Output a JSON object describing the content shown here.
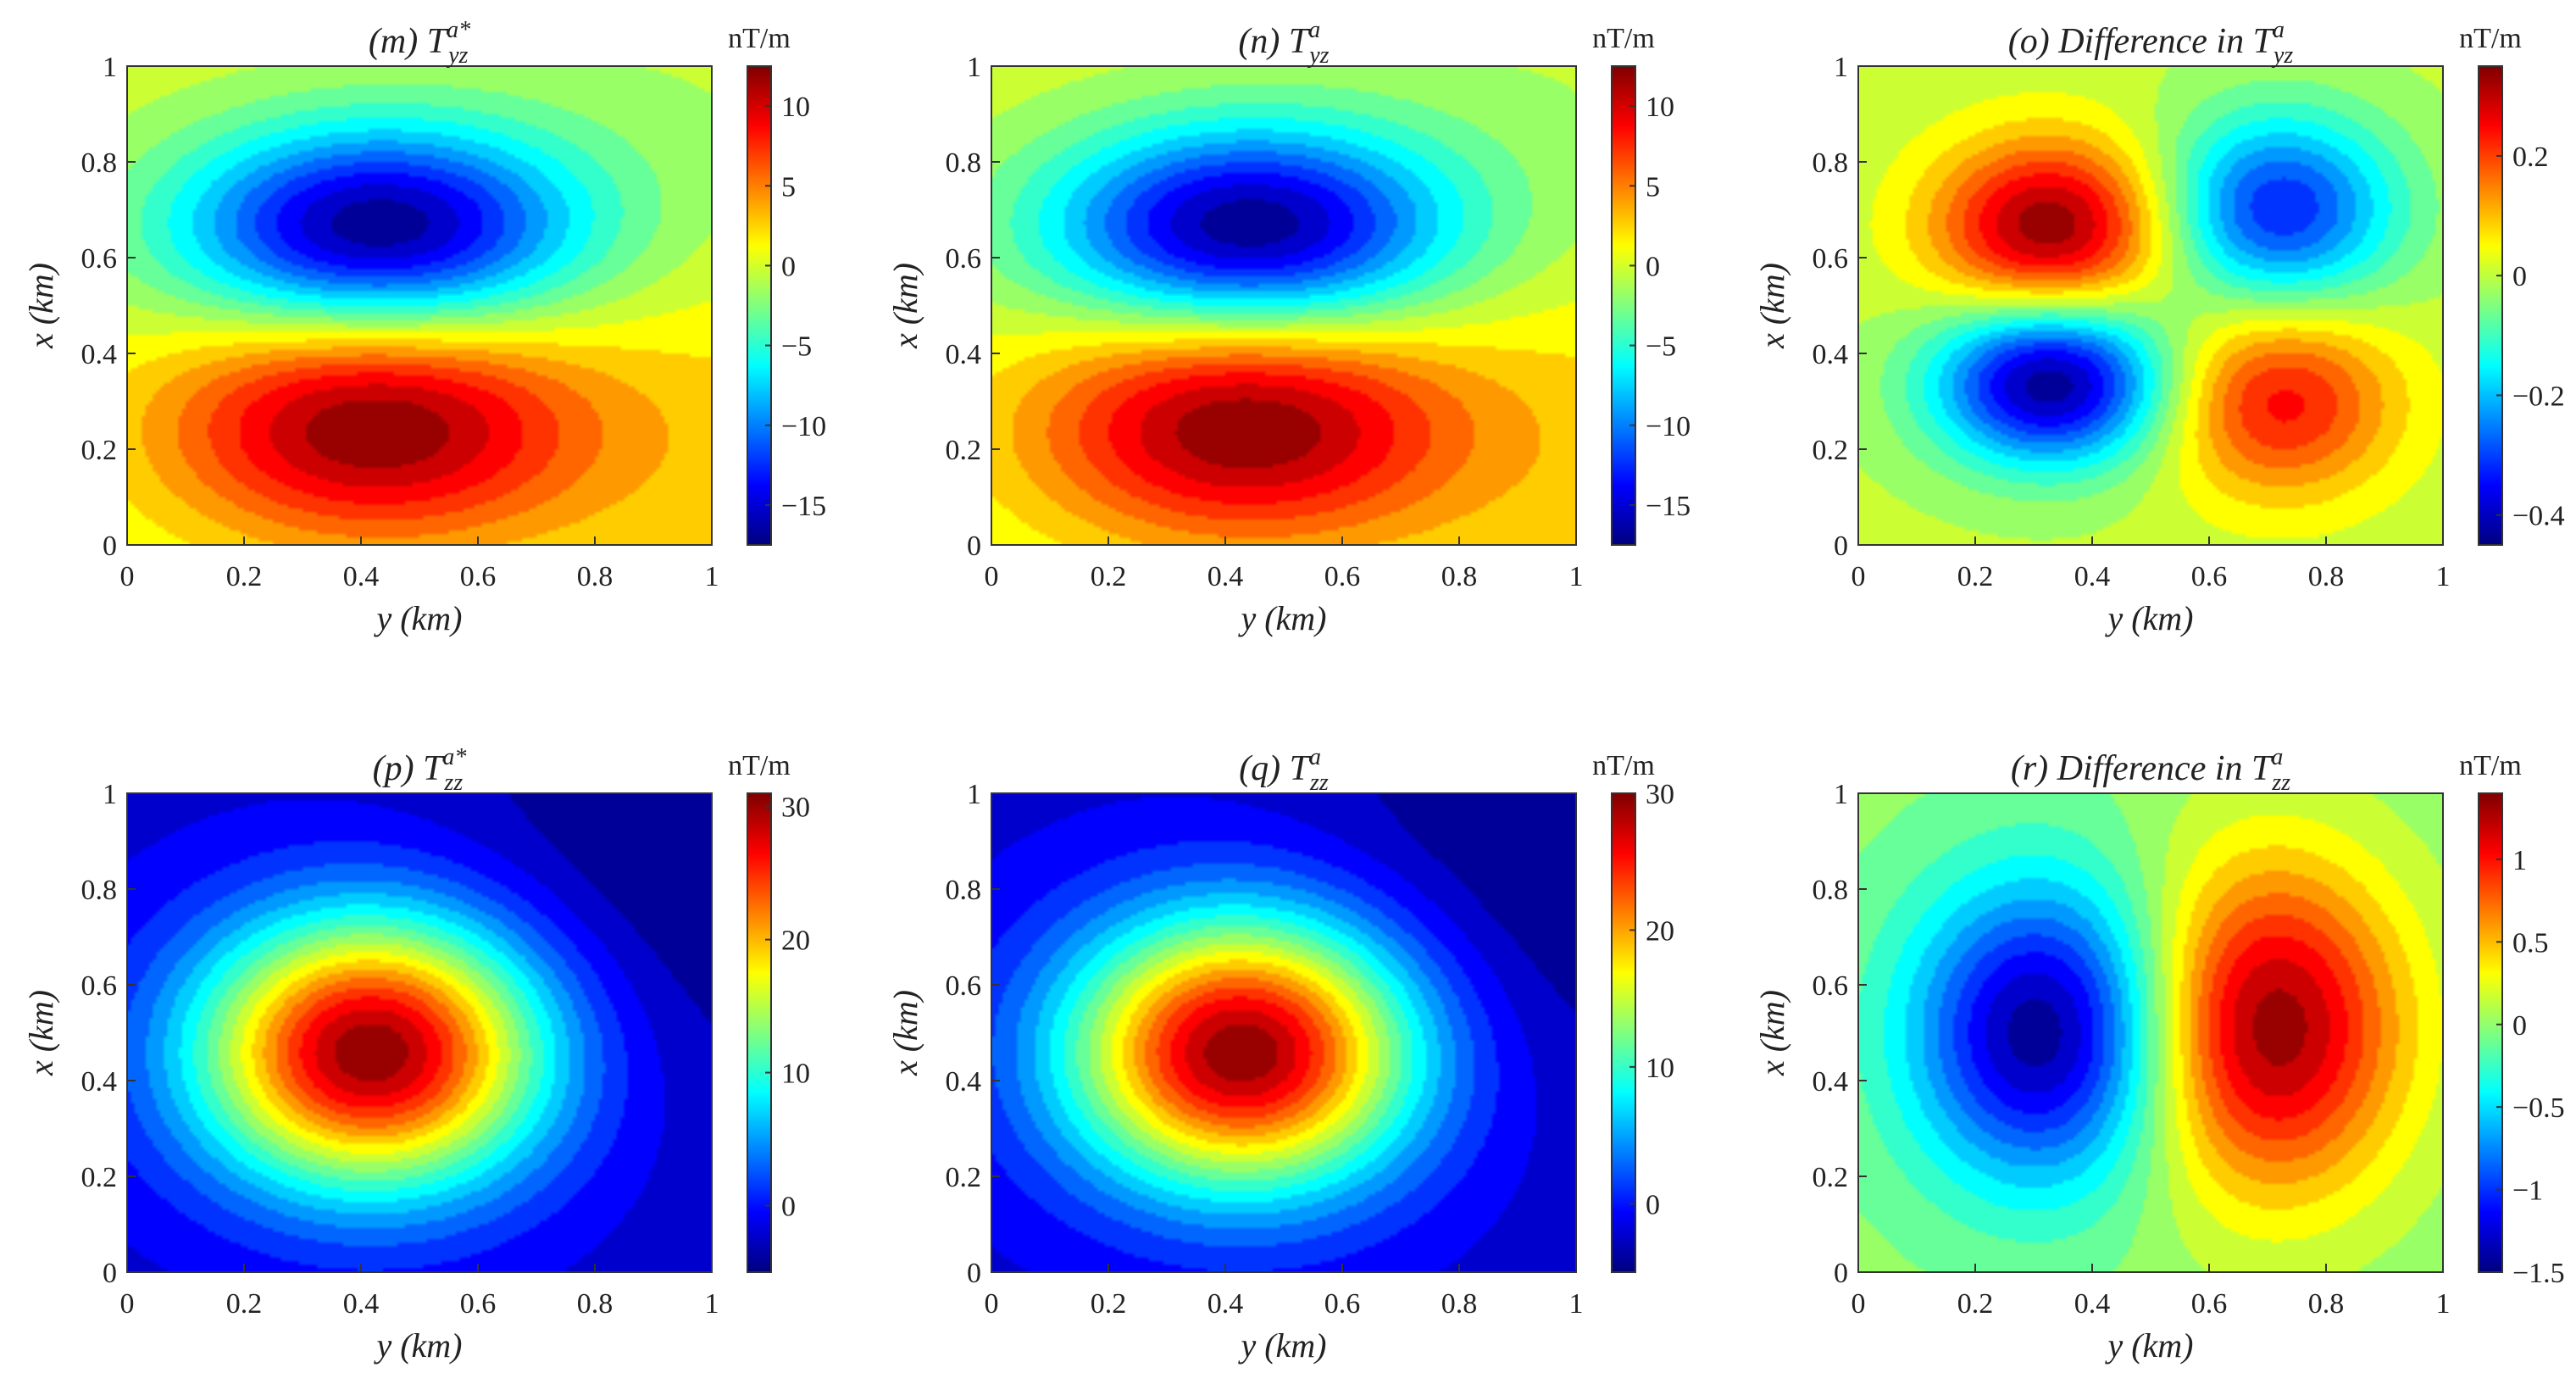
{
  "figure": {
    "colorbar_unit": "nT/m",
    "panels_note": "3x2 grid of filled contour maps"
  },
  "chart_data": [
    {
      "type": "heatmap",
      "title": {
        "label": "(m) ",
        "base": "T",
        "sup": "a*",
        "sub": "yz"
      },
      "xlabel": "y (km)",
      "ylabel": "x (km)",
      "xlim": [
        0,
        1
      ],
      "ylim": [
        0,
        1
      ],
      "xticks": [
        "0",
        "0.2",
        "0.4",
        "0.6",
        "0.8",
        "1"
      ],
      "yticks": [
        "0",
        "0.2",
        "0.4",
        "0.6",
        "0.8",
        "1"
      ],
      "colorbar": {
        "label": "nT/m",
        "min": -17.5,
        "max": 12.5,
        "ticks": [
          -15,
          -10,
          -5,
          0,
          5,
          10
        ],
        "tick_labels": [
          "−15",
          "−10",
          "−5",
          "0",
          "5",
          "10"
        ]
      },
      "levels": 20,
      "field": {
        "base": 0,
        "blobs": [
          {
            "x": 0.42,
            "y": 0.25,
            "sx": 0.25,
            "sy": 0.17,
            "a": 12.5
          },
          {
            "x": 0.43,
            "y": 0.66,
            "sx": 0.24,
            "sy": 0.15,
            "a": -17.5
          },
          {
            "x": 1.05,
            "y": 0.2,
            "sx": 0.28,
            "sy": 0.3,
            "a": 2.2
          },
          {
            "x": 0.95,
            "y": 0.85,
            "sx": 0.3,
            "sy": 0.25,
            "a": -1.0
          }
        ]
      }
    },
    {
      "type": "heatmap",
      "title": {
        "label": "(n) ",
        "base": "T",
        "sup": "a",
        "sub": "yz"
      },
      "xlabel": "y (km)",
      "ylabel": "x (km)",
      "xlim": [
        0,
        1
      ],
      "ylim": [
        0,
        1
      ],
      "xticks": [
        "0",
        "0.2",
        "0.4",
        "0.6",
        "0.8",
        "1"
      ],
      "yticks": [
        "0",
        "0.2",
        "0.4",
        "0.6",
        "0.8",
        "1"
      ],
      "colorbar": {
        "label": "nT/m",
        "min": -17.5,
        "max": 12.5,
        "ticks": [
          -15,
          -10,
          -5,
          0,
          5,
          10
        ],
        "tick_labels": [
          "−15",
          "−10",
          "−5",
          "0",
          "5",
          "10"
        ]
      },
      "levels": 20,
      "field": {
        "base": 0,
        "blobs": [
          {
            "x": 0.43,
            "y": 0.25,
            "sx": 0.25,
            "sy": 0.17,
            "a": 12.5
          },
          {
            "x": 0.44,
            "y": 0.66,
            "sx": 0.24,
            "sy": 0.15,
            "a": -17.5
          },
          {
            "x": 1.05,
            "y": 0.2,
            "sx": 0.28,
            "sy": 0.3,
            "a": 2.2
          },
          {
            "x": 0.95,
            "y": 0.85,
            "sx": 0.3,
            "sy": 0.25,
            "a": -1.0
          }
        ]
      }
    },
    {
      "type": "heatmap",
      "title": {
        "label": "(o) Difference in ",
        "base": "T",
        "sup": "a",
        "sub": "yz"
      },
      "xlabel": "y (km)",
      "ylabel": "x (km)",
      "xlim": [
        0,
        1
      ],
      "ylim": [
        0,
        1
      ],
      "xticks": [
        "0",
        "0.2",
        "0.4",
        "0.6",
        "0.8",
        "1"
      ],
      "yticks": [
        "0",
        "0.2",
        "0.4",
        "0.6",
        "0.8",
        "1"
      ],
      "colorbar": {
        "label": "nT/m",
        "min": -0.45,
        "max": 0.35,
        "ticks": [
          -0.4,
          -0.2,
          0,
          0.2
        ],
        "tick_labels": [
          "−0.4",
          "−0.2",
          "0",
          "0.2"
        ]
      },
      "levels": 20,
      "field": {
        "base": 0,
        "blobs": [
          {
            "x": 0.33,
            "y": 0.66,
            "sx": 0.14,
            "sy": 0.13,
            "a": 0.35
          },
          {
            "x": 0.72,
            "y": 0.7,
            "sx": 0.14,
            "sy": 0.14,
            "a": -0.33
          },
          {
            "x": 0.33,
            "y": 0.34,
            "sx": 0.14,
            "sy": 0.12,
            "a": -0.45
          },
          {
            "x": 0.72,
            "y": 0.3,
            "sx": 0.14,
            "sy": 0.14,
            "a": 0.25
          }
        ]
      }
    },
    {
      "type": "heatmap",
      "title": {
        "label": "(p) ",
        "base": "T",
        "sup": "a*",
        "sub": "zz"
      },
      "xlabel": "y (km)",
      "ylabel": "x (km)",
      "xlim": [
        0,
        1
      ],
      "ylim": [
        0,
        1
      ],
      "xticks": [
        "0",
        "0.2",
        "0.4",
        "0.6",
        "0.8",
        "1"
      ],
      "yticks": [
        "0",
        "0.2",
        "0.4",
        "0.6",
        "0.8",
        "1"
      ],
      "colorbar": {
        "label": "nT/m",
        "min": -5,
        "max": 31,
        "ticks": [
          0,
          10,
          20,
          30
        ],
        "tick_labels": [
          "0",
          "10",
          "20",
          "30"
        ]
      },
      "levels": 20,
      "field": {
        "base": -2,
        "blobs": [
          {
            "x": 0.42,
            "y": 0.46,
            "sx": 0.21,
            "sy": 0.2,
            "a": 33
          },
          {
            "x": 0.95,
            "y": 0.85,
            "sx": 0.3,
            "sy": 0.35,
            "a": -3
          }
        ]
      }
    },
    {
      "type": "heatmap",
      "title": {
        "label": "(q) ",
        "base": "T",
        "sup": "a",
        "sub": "zz"
      },
      "xlabel": "y (km)",
      "ylabel": "x (km)",
      "xlim": [
        0,
        1
      ],
      "ylim": [
        0,
        1
      ],
      "xticks": [
        "0",
        "0.2",
        "0.4",
        "0.6",
        "0.8",
        "1"
      ],
      "yticks": [
        "0",
        "0.2",
        "0.4",
        "0.6",
        "0.8",
        "1"
      ],
      "colorbar": {
        "label": "nT/m",
        "min": -5,
        "max": 30,
        "ticks": [
          0,
          10,
          20,
          30
        ],
        "tick_labels": [
          "0",
          "10",
          "20",
          "30"
        ]
      },
      "levels": 20,
      "field": {
        "base": -2,
        "blobs": [
          {
            "x": 0.43,
            "y": 0.46,
            "sx": 0.21,
            "sy": 0.2,
            "a": 32
          },
          {
            "x": 0.95,
            "y": 0.85,
            "sx": 0.3,
            "sy": 0.35,
            "a": -3
          }
        ]
      }
    },
    {
      "type": "heatmap",
      "title": {
        "label": "(r) Difference in ",
        "base": "T",
        "sup": "a",
        "sub": "zz"
      },
      "xlabel": "y (km)",
      "ylabel": "x (km)",
      "xlim": [
        0,
        1
      ],
      "ylim": [
        0,
        1
      ],
      "xticks": [
        "0",
        "0.2",
        "0.4",
        "0.6",
        "0.8",
        "1"
      ],
      "yticks": [
        "0",
        "0.2",
        "0.4",
        "0.6",
        "0.8",
        "1"
      ],
      "colorbar": {
        "label": "nT/m",
        "min": -1.5,
        "max": 1.4,
        "ticks": [
          -1.5,
          -1,
          -0.5,
          0,
          0.5,
          1
        ],
        "tick_labels": [
          "−1.5",
          "−1",
          "−0.5",
          "0",
          "0.5",
          "1"
        ]
      },
      "levels": 20,
      "field": {
        "base": 0,
        "blobs": [
          {
            "x": 0.32,
            "y": 0.5,
            "sx": 0.16,
            "sy": 0.22,
            "a": -1.5
          },
          {
            "x": 0.7,
            "y": 0.51,
            "sx": 0.16,
            "sy": 0.24,
            "a": 1.4
          }
        ]
      }
    }
  ]
}
